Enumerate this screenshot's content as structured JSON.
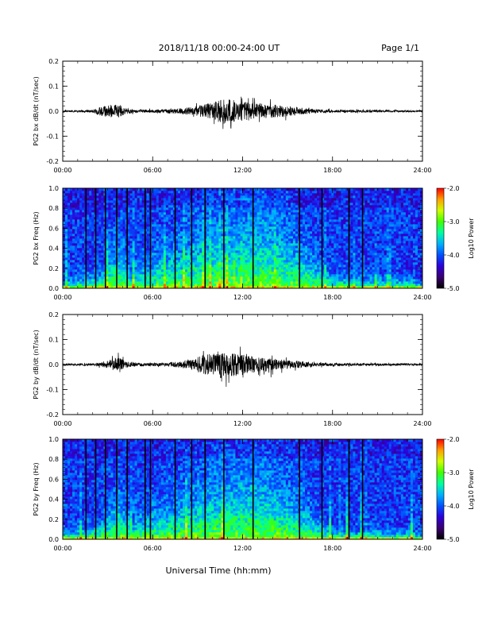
{
  "header": {
    "title": "2018/11/18  00:00-24:00 UT",
    "page": "Page 1/1"
  },
  "xlabel": "Universal Time (hh:mm)",
  "colors": {
    "trace": "#000000",
    "colorbar": [
      "#000000",
      "#3a0070",
      "#2d00d8",
      "#0050ff",
      "#00b0ff",
      "#00ffa0",
      "#40ff00",
      "#d0ff00",
      "#ffa000",
      "#ff0000"
    ]
  },
  "chart_data": [
    {
      "type": "line",
      "ylabel": "PG2 bx dB/dt (nT/sec)",
      "xlim": [
        0,
        24
      ],
      "ylim": [
        -0.2,
        0.2
      ],
      "xticks": [
        "00:00",
        "06:00",
        "12:00",
        "18:00",
        "24:00"
      ],
      "yticks": [
        "-0.2",
        "-0.1",
        "0.0",
        "0.1",
        "0.2"
      ],
      "envelope": [
        {
          "t": 0.0,
          "a": 0.006
        },
        {
          "t": 2.0,
          "a": 0.008
        },
        {
          "t": 2.5,
          "a": 0.03
        },
        {
          "t": 3.7,
          "a": 0.05
        },
        {
          "t": 4.2,
          "a": 0.02
        },
        {
          "t": 5.0,
          "a": 0.01
        },
        {
          "t": 6.5,
          "a": 0.012
        },
        {
          "t": 8.0,
          "a": 0.02
        },
        {
          "t": 9.0,
          "a": 0.035
        },
        {
          "t": 10.0,
          "a": 0.06
        },
        {
          "t": 10.8,
          "a": 0.085
        },
        {
          "t": 11.5,
          "a": 0.075
        },
        {
          "t": 12.5,
          "a": 0.055
        },
        {
          "t": 13.5,
          "a": 0.05
        },
        {
          "t": 14.5,
          "a": 0.04
        },
        {
          "t": 15.5,
          "a": 0.03
        },
        {
          "t": 16.5,
          "a": 0.015
        },
        {
          "t": 18.0,
          "a": 0.01
        },
        {
          "t": 20.0,
          "a": 0.008
        },
        {
          "t": 24.0,
          "a": 0.006
        }
      ]
    },
    {
      "type": "heatmap",
      "ylabel": "PG2 bx Freq (Hz)",
      "xlim": [
        0,
        24
      ],
      "ylim": [
        0.0,
        1.0
      ],
      "xticks": [
        "00:00",
        "06:00",
        "12:00",
        "18:00",
        "24:00"
      ],
      "yticks": [
        "0.0",
        "0.2",
        "0.4",
        "0.6",
        "0.8",
        "1.0"
      ],
      "colorbar_label": "Log10 Power",
      "colorbar_ticks": [
        "-2.0",
        "-3.0",
        "-4.0",
        "-5.0"
      ],
      "crange": [
        -5.0,
        -2.0
      ],
      "gaps": [
        1.55,
        2.2,
        2.85,
        3.6,
        4.3,
        5.5,
        5.85,
        7.5,
        8.6,
        9.5,
        10.75,
        12.7,
        15.8,
        17.3,
        19.1,
        20.0
      ],
      "activity": [
        {
          "t": 0.0,
          "f": 0.05
        },
        {
          "t": 2.5,
          "f": 0.1
        },
        {
          "t": 3.7,
          "f": 0.3
        },
        {
          "t": 4.5,
          "f": 0.12
        },
        {
          "t": 6.0,
          "f": 0.2
        },
        {
          "t": 8.0,
          "f": 0.3
        },
        {
          "t": 10.0,
          "f": 0.4
        },
        {
          "t": 12.0,
          "f": 0.45
        },
        {
          "t": 13.5,
          "f": 0.5
        },
        {
          "t": 15.0,
          "f": 0.35
        },
        {
          "t": 16.5,
          "f": 0.2
        },
        {
          "t": 18.0,
          "f": 0.08
        },
        {
          "t": 24.0,
          "f": 0.05
        }
      ]
    },
    {
      "type": "line",
      "ylabel": "PG2 by dB/dt (nT/sec)",
      "xlim": [
        0,
        24
      ],
      "ylim": [
        -0.2,
        0.2
      ],
      "xticks": [
        "00:00",
        "06:00",
        "12:00",
        "18:00",
        "24:00"
      ],
      "yticks": [
        "-0.2",
        "-0.1",
        "0.0",
        "0.1",
        "0.2"
      ],
      "envelope": [
        {
          "t": 0.0,
          "a": 0.006
        },
        {
          "t": 2.0,
          "a": 0.008
        },
        {
          "t": 3.0,
          "a": 0.025
        },
        {
          "t": 3.7,
          "a": 0.06
        },
        {
          "t": 4.2,
          "a": 0.02
        },
        {
          "t": 5.0,
          "a": 0.01
        },
        {
          "t": 7.0,
          "a": 0.012
        },
        {
          "t": 8.5,
          "a": 0.03
        },
        {
          "t": 9.5,
          "a": 0.07
        },
        {
          "t": 10.5,
          "a": 0.09
        },
        {
          "t": 11.3,
          "a": 0.08
        },
        {
          "t": 12.0,
          "a": 0.07
        },
        {
          "t": 13.0,
          "a": 0.05
        },
        {
          "t": 14.0,
          "a": 0.04
        },
        {
          "t": 15.5,
          "a": 0.025
        },
        {
          "t": 17.0,
          "a": 0.012
        },
        {
          "t": 19.0,
          "a": 0.009
        },
        {
          "t": 24.0,
          "a": 0.006
        }
      ]
    },
    {
      "type": "heatmap",
      "ylabel": "PG2 by Freq (Hz)",
      "xlim": [
        0,
        24
      ],
      "ylim": [
        0.0,
        1.0
      ],
      "xticks": [
        "00:00",
        "06:00",
        "12:00",
        "18:00",
        "24:00"
      ],
      "yticks": [
        "0.0",
        "0.2",
        "0.4",
        "0.6",
        "0.8",
        "1.0"
      ],
      "colorbar_label": "Log10 Power",
      "colorbar_ticks": [
        "-2.0",
        "-3.0",
        "-4.0",
        "-5.0"
      ],
      "crange": [
        -5.0,
        -2.0
      ],
      "gaps": [
        1.55,
        2.2,
        2.85,
        3.6,
        4.3,
        5.5,
        5.85,
        7.5,
        8.6,
        9.5,
        10.75,
        12.7,
        15.8,
        17.3,
        19.1,
        20.0
      ],
      "activity": [
        {
          "t": 0.0,
          "f": 0.05
        },
        {
          "t": 2.5,
          "f": 0.1
        },
        {
          "t": 3.7,
          "f": 0.28
        },
        {
          "t": 4.5,
          "f": 0.12
        },
        {
          "t": 6.0,
          "f": 0.18
        },
        {
          "t": 8.0,
          "f": 0.28
        },
        {
          "t": 10.0,
          "f": 0.38
        },
        {
          "t": 12.0,
          "f": 0.42
        },
        {
          "t": 13.5,
          "f": 0.45
        },
        {
          "t": 15.0,
          "f": 0.3
        },
        {
          "t": 16.5,
          "f": 0.18
        },
        {
          "t": 18.0,
          "f": 0.06
        },
        {
          "t": 24.0,
          "f": 0.05
        }
      ]
    }
  ]
}
